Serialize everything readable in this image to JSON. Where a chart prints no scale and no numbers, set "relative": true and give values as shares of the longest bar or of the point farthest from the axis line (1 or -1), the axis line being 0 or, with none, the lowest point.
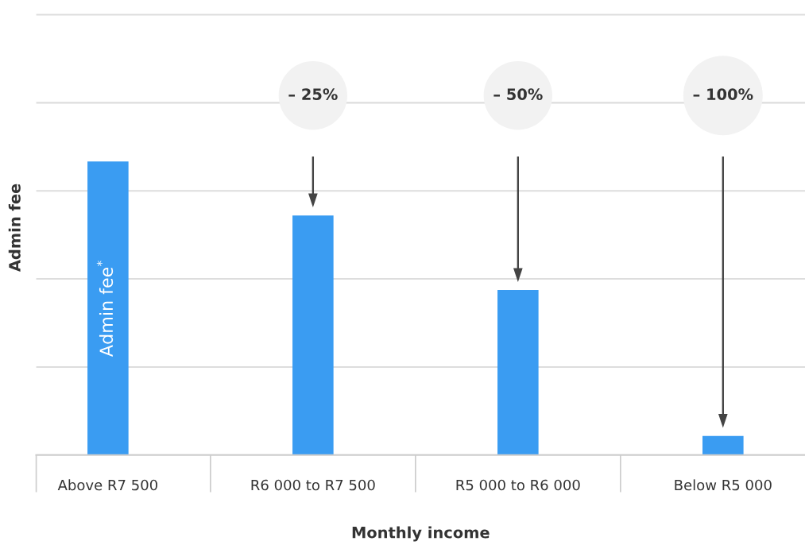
{
  "chart_data": {
    "type": "bar",
    "relative": true,
    "xlabel": "Monthly income",
    "ylabel": "Admin fee",
    "categories": [
      "Above R7 500",
      "R6 000 to R7 500",
      "R5 000 to R6 000",
      "Below R5 000"
    ],
    "values": [
      1,
      0.816,
      0.562,
      0.065
    ],
    "color": "#3a9cf2",
    "grid": "y",
    "annotations": [
      "Admin fee$^{*}$",
      "– 25%",
      "– 50%",
      "– 100%"
    ]
  }
}
